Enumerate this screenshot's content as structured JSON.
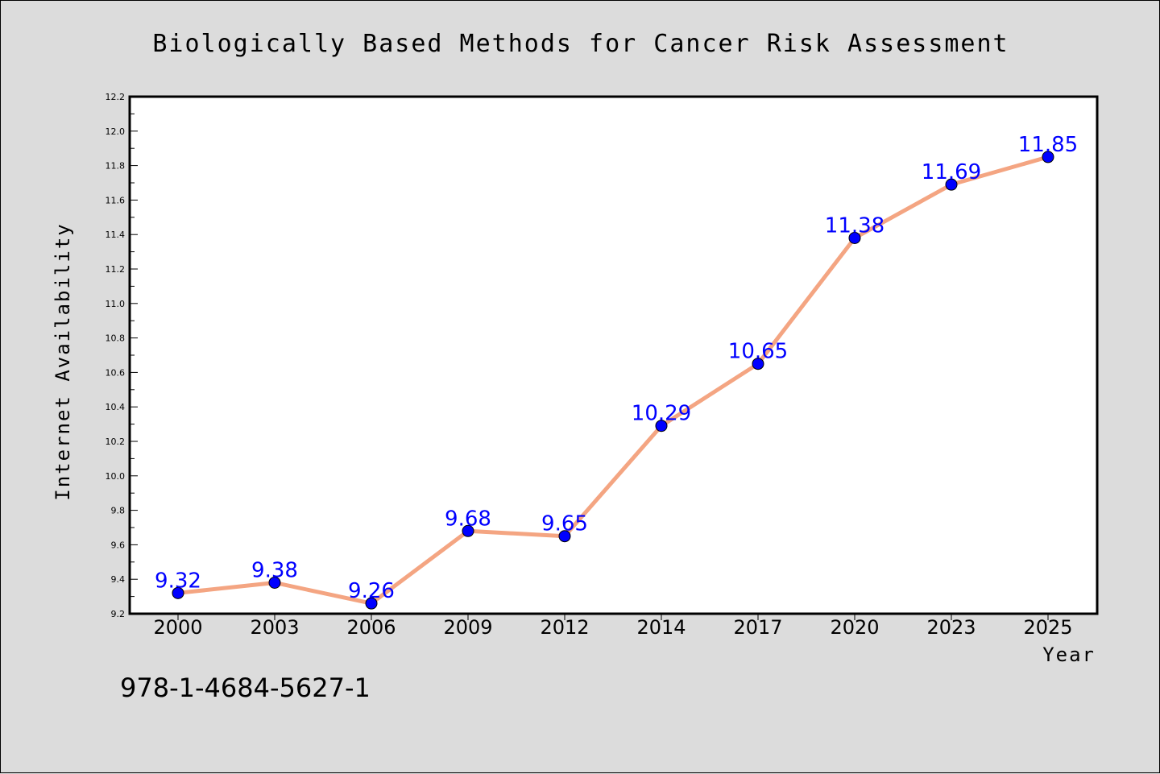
{
  "chart_data": {
    "type": "line",
    "title": "Biologically Based Methods for Cancer Risk Assessment",
    "xlabel": "Year",
    "ylabel": "Internet Availability",
    "categories": [
      "2000",
      "2003",
      "2006",
      "2009",
      "2012",
      "2014",
      "2017",
      "2020",
      "2023",
      "2025"
    ],
    "series": [
      {
        "values": [
          9.32,
          9.38,
          9.26,
          9.68,
          9.65,
          10.29,
          10.65,
          11.38,
          11.69,
          11.85
        ],
        "line_color": "#f4a582",
        "marker_color": "#0000ff",
        "label_color": "#0000ff"
      }
    ],
    "data_labels": [
      "9.32",
      "9.38",
      "9.26",
      "9.68",
      "9.65",
      "10.29",
      "10.65",
      "11.38",
      "11.69",
      "11.85"
    ],
    "ylim": [
      9.2,
      12.2
    ],
    "yticks": [
      "9.2",
      "9.4",
      "9.6",
      "9.8",
      "10.0",
      "10.2",
      "10.4",
      "10.6",
      "10.8",
      "11.0",
      "11.2",
      "11.4",
      "11.6",
      "11.8",
      "12.0",
      "12.2"
    ],
    "grid": false,
    "legend": "none"
  },
  "footer": {
    "isbn": "978-1-4684-5627-1"
  },
  "colors": {
    "background": "#dcdcdc",
    "plot_area": "#ffffff"
  }
}
